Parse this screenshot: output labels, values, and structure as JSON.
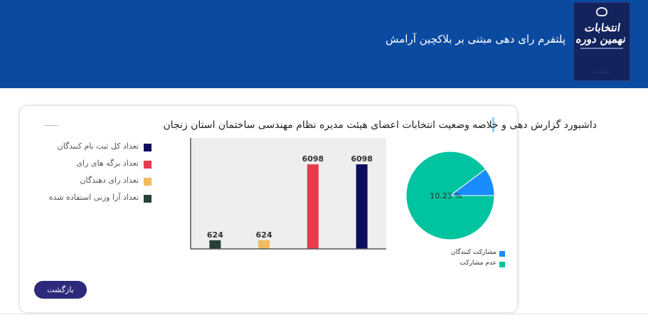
{
  "header": {
    "title": "پلتفرم رای دهی مبتنی بر بلاکچین آرامش",
    "logo_text": "انتخابات نهمین دوره"
  },
  "colors": {
    "header_bg": "#0a4aa0",
    "button_bg": "#2d2a7c"
  },
  "dashboard": {
    "title": "داشبورد گزارش دهی و خلاصه وضعیت انتخابات اعضای هیئت مدیره نظام مهندسی ساختمان استان زنجان",
    "back_button": "بازگشت"
  },
  "chart_data": [
    {
      "type": "bar",
      "categories": [
        "تعداد آرا وزنی استفاده شده",
        "تعداد رای دهندگان",
        "تعداد برگه های رای",
        "تعداد کل ثبت نام کنندگان"
      ],
      "values": [
        624,
        624,
        6098,
        6098
      ],
      "colors": [
        "#26403a",
        "#f2bb5c",
        "#e83a4c",
        "#0d0d5e"
      ],
      "legend_labels": [
        "تعداد کل ثبت نام کنندگان",
        "تعداد برگه های رای",
        "تعداد رای دهندگان",
        "تعداد آرا وزنی استفاده شده"
      ],
      "legend_colors": [
        "#0d0d5e",
        "#e83a4c",
        "#f2bb5c",
        "#26403a"
      ],
      "legend_position": "left",
      "ylim": [
        0,
        8000
      ],
      "grid": false
    },
    {
      "type": "pie",
      "slices": [
        {
          "label": "مشارکت کنندگان",
          "value": 10.23,
          "color": "#1a8cff"
        },
        {
          "label": "عدم مشارکت",
          "value": 89.77,
          "color": "#00c49f"
        }
      ],
      "slice_label": "10.23 %",
      "legend_position": "bottom"
    }
  ]
}
